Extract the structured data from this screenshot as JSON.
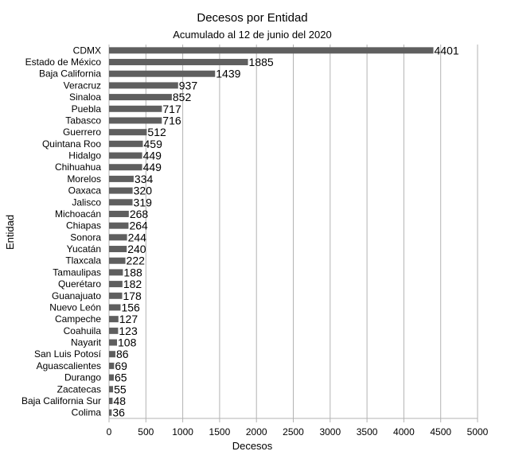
{
  "chart_data": {
    "type": "bar",
    "orientation": "horizontal",
    "title": "Decesos por Entidad",
    "subtitle": "Acumulado al 12 de junio del 2020",
    "xlabel": "Decesos",
    "ylabel": "Entidad",
    "xlim": [
      0,
      5000
    ],
    "xticks": [
      0,
      500,
      1000,
      1500,
      2000,
      2500,
      3000,
      3500,
      4000,
      4500,
      5000
    ],
    "grid": true,
    "bar_color": "#5f5f5f",
    "grid_color": "#b3b3b3",
    "categories": [
      "CDMX",
      "Estado de México",
      "Baja California",
      "Veracruz",
      "Sinaloa",
      "Puebla",
      "Tabasco",
      "Guerrero",
      "Quintana Roo",
      "Hidalgo",
      "Chihuahua",
      "Morelos",
      "Oaxaca",
      "Jalisco",
      "Michoacán",
      "Chiapas",
      "Sonora",
      "Yucatán",
      "Tlaxcala",
      "Tamaulipas",
      "Querétaro",
      "Guanajuato",
      "Nuevo León",
      "Campeche",
      "Coahuila",
      "Nayarit",
      "San Luis Potosí",
      "Aguascalientes",
      "Durango",
      "Zacatecas",
      "Baja California Sur",
      "Colima"
    ],
    "values": [
      4401,
      1885,
      1439,
      937,
      852,
      717,
      716,
      512,
      459,
      449,
      449,
      334,
      320,
      319,
      268,
      264,
      244,
      240,
      222,
      188,
      182,
      178,
      156,
      127,
      123,
      108,
      86,
      69,
      65,
      55,
      48,
      36
    ]
  }
}
